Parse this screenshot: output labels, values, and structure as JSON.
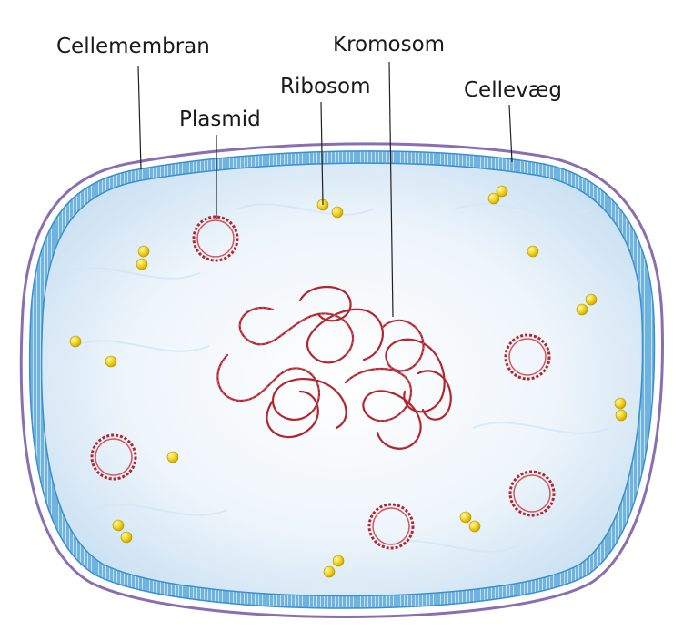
{
  "labels": {
    "cellemembran": "Cellemembran",
    "kromosom": "Kromosom",
    "ribosom": "Ribosom",
    "cellevaeg": "Cellevæg",
    "plasmid": "Plasmid"
  },
  "colors": {
    "membrane": "#5aa6d9",
    "cell_wall": "#8a6fb0",
    "cytoplasm": "#e6f1fa",
    "dna": "#b3262e",
    "ribosome": "#f2d21a"
  }
}
